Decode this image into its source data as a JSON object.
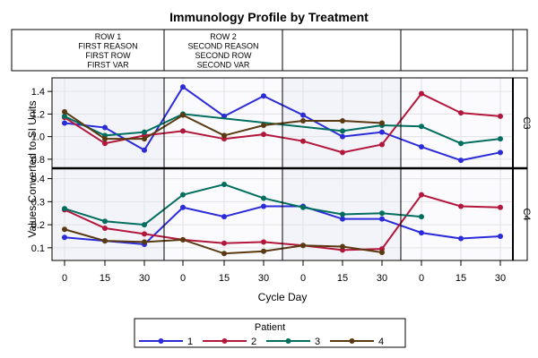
{
  "chart_data": {
    "type": "line",
    "title": "Immunology Profile by Treatment",
    "xlabel": "Cycle Day",
    "ylabel": "Values Converted to SI Units",
    "header_cells": [
      [
        "ROW 1",
        "FIRST REASON",
        "FIRST ROW",
        "FIRST VAR"
      ],
      [
        "ROW 2",
        "SECOND REASON",
        "SECOND ROW",
        "SECOND VAR"
      ],
      [],
      []
    ],
    "x_ticks": [
      0,
      15,
      30
    ],
    "x_tick_labels": [
      "0",
      "15",
      "30"
    ],
    "column_count": 4,
    "shaded_columns": [
      0,
      2
    ],
    "legend": {
      "title": "Patient",
      "position": "bottom-center",
      "entries": [
        {
          "label": "1",
          "color": "#2b2bd9"
        },
        {
          "label": "2",
          "color": "#b3163b"
        },
        {
          "label": "3",
          "color": "#006e5f"
        },
        {
          "label": "4",
          "color": "#5a3a10"
        }
      ]
    },
    "rows": [
      {
        "label": "C3",
        "ylim": [
          0.72,
          1.52
        ],
        "y_ticks": [
          0.8,
          1.0,
          1.2,
          1.4
        ],
        "y_tick_labels": [
          "0.8",
          "1.0",
          "1.2",
          "1.4"
        ],
        "series": [
          {
            "name": "1",
            "points": [
              [
                0,
                0,
                1.12
              ],
              [
                0,
                15,
                1.08
              ],
              [
                0,
                30,
                0.88
              ],
              [
                1,
                0,
                1.44
              ],
              [
                1,
                15,
                1.18
              ],
              [
                1,
                30,
                1.36
              ],
              [
                2,
                0,
                1.19
              ],
              [
                2,
                15,
                1.0
              ],
              [
                2,
                30,
                1.04
              ],
              [
                3,
                0,
                0.91
              ],
              [
                3,
                15,
                0.79
              ],
              [
                3,
                30,
                0.86
              ]
            ]
          },
          {
            "name": "2",
            "points": [
              [
                0,
                0,
                1.17
              ],
              [
                0,
                15,
                0.94
              ],
              [
                0,
                30,
                1.01
              ],
              [
                1,
                0,
                1.05
              ],
              [
                1,
                15,
                0.98
              ],
              [
                1,
                30,
                1.02
              ],
              [
                2,
                0,
                0.96
              ],
              [
                2,
                15,
                0.86
              ],
              [
                2,
                30,
                0.93
              ],
              [
                3,
                0,
                1.38
              ],
              [
                3,
                15,
                1.21
              ],
              [
                3,
                30,
                1.18
              ]
            ]
          },
          {
            "name": "3",
            "points": [
              [
                0,
                0,
                1.18
              ],
              [
                0,
                15,
                1.01
              ],
              [
                0,
                30,
                1.04
              ],
              [
                1,
                0,
                1.2
              ],
              [
                2,
                15,
                1.05
              ],
              [
                2,
                30,
                1.1
              ],
              [
                3,
                0,
                1.09
              ],
              [
                3,
                15,
                0.94
              ],
              [
                3,
                30,
                0.98
              ]
            ]
          },
          {
            "name": "4",
            "points": [
              [
                0,
                0,
                1.22
              ],
              [
                0,
                15,
                0.98
              ],
              [
                0,
                30,
                0.98
              ],
              [
                1,
                0,
                1.19
              ],
              [
                1,
                15,
                1.01
              ],
              [
                1,
                30,
                1.1
              ],
              [
                2,
                0,
                1.14
              ],
              [
                2,
                15,
                1.14
              ],
              [
                2,
                30,
                1.12
              ]
            ]
          }
        ]
      },
      {
        "label": "C4",
        "ylim": [
          0.045,
          0.445
        ],
        "y_ticks": [
          0.1,
          0.2,
          0.3,
          0.4
        ],
        "y_tick_labels": [
          "0.1",
          "0.2",
          "0.3",
          "0.4"
        ],
        "series": [
          {
            "name": "1",
            "points": [
              [
                0,
                0,
                0.145
              ],
              [
                0,
                15,
                0.13
              ],
              [
                0,
                30,
                0.115
              ],
              [
                1,
                0,
                0.275
              ],
              [
                1,
                15,
                0.235
              ],
              [
                1,
                30,
                0.28
              ],
              [
                2,
                0,
                0.28
              ],
              [
                2,
                15,
                0.225
              ],
              [
                2,
                30,
                0.225
              ],
              [
                3,
                0,
                0.165
              ],
              [
                3,
                15,
                0.14
              ],
              [
                3,
                30,
                0.15
              ]
            ]
          },
          {
            "name": "2",
            "points": [
              [
                0,
                0,
                0.265
              ],
              [
                0,
                15,
                0.185
              ],
              [
                0,
                30,
                0.16
              ],
              [
                1,
                0,
                0.135
              ],
              [
                1,
                15,
                0.12
              ],
              [
                1,
                30,
                0.125
              ],
              [
                2,
                0,
                0.11
              ],
              [
                2,
                15,
                0.09
              ],
              [
                2,
                30,
                0.095
              ],
              [
                3,
                0,
                0.33
              ],
              [
                3,
                15,
                0.28
              ],
              [
                3,
                30,
                0.275
              ]
            ]
          },
          {
            "name": "3",
            "points": [
              [
                0,
                0,
                0.27
              ],
              [
                0,
                15,
                0.215
              ],
              [
                0,
                30,
                0.2
              ],
              [
                1,
                0,
                0.33
              ],
              [
                1,
                15,
                0.375
              ],
              [
                1,
                30,
                0.315
              ],
              [
                2,
                0,
                0.275
              ],
              [
                2,
                15,
                0.245
              ],
              [
                2,
                30,
                0.25
              ],
              [
                3,
                0,
                0.235
              ]
            ]
          },
          {
            "name": "4",
            "points": [
              [
                0,
                0,
                0.18
              ],
              [
                0,
                15,
                0.13
              ],
              [
                0,
                30,
                0.125
              ],
              [
                1,
                0,
                0.135
              ],
              [
                1,
                15,
                0.075
              ],
              [
                1,
                30,
                0.085
              ],
              [
                2,
                0,
                0.11
              ],
              [
                2,
                15,
                0.105
              ],
              [
                2,
                30,
                0.08
              ]
            ]
          }
        ]
      }
    ],
    "grid": true
  }
}
